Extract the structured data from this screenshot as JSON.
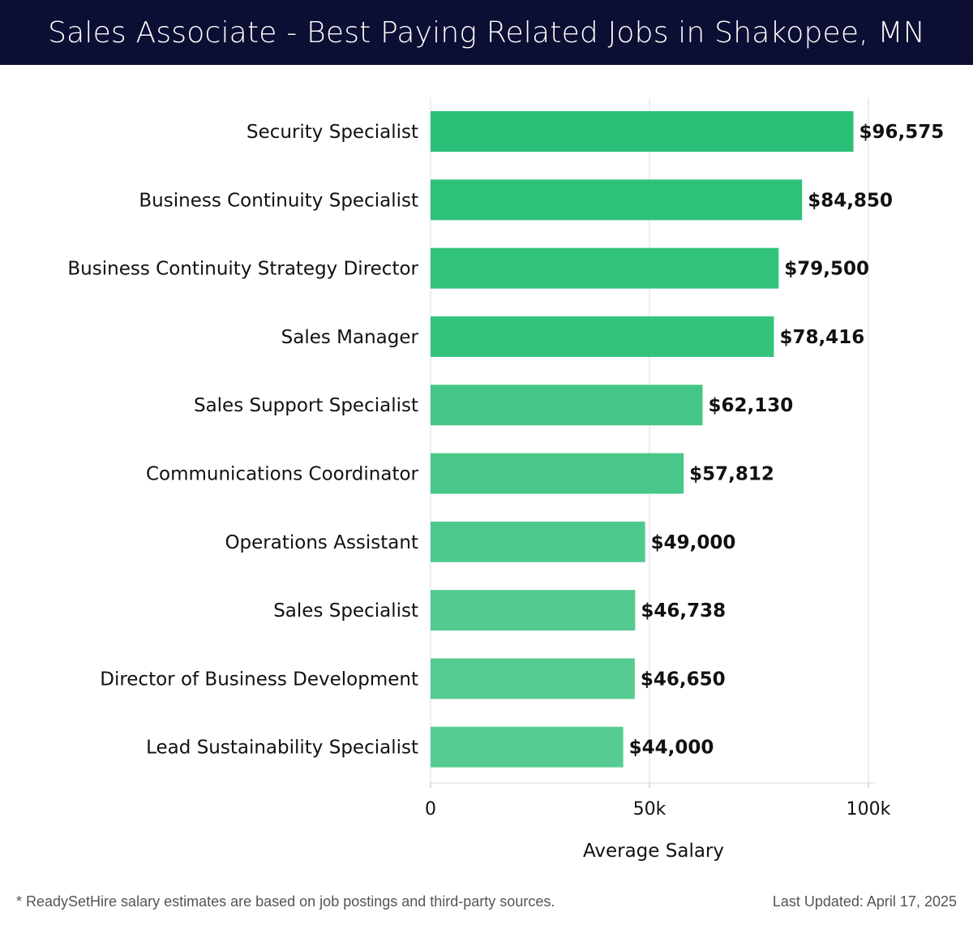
{
  "header": {
    "title": "Sales Associate - Best Paying Related Jobs in Shakopee, MN"
  },
  "chart_data": {
    "type": "bar",
    "orientation": "horizontal",
    "title": "Sales Associate - Best Paying Related Jobs in Shakopee, MN",
    "xlabel": "Average Salary",
    "ylabel": "",
    "categories": [
      "Security Specialist",
      "Business Continuity Specialist",
      "Business Continuity Strategy Director",
      "Sales Manager",
      "Sales Support Specialist",
      "Communications Coordinator",
      "Operations Assistant",
      "Sales Specialist",
      "Director of Business Development",
      "Lead Sustainability Specialist"
    ],
    "values": [
      96575,
      84850,
      79500,
      78416,
      62130,
      57812,
      49000,
      46738,
      46650,
      44000
    ],
    "value_labels": [
      "$96,575",
      "$84,850",
      "$79,500",
      "$78,416",
      "$62,130",
      "$57,812",
      "$49,000",
      "$46,738",
      "$46,650",
      "$44,000"
    ],
    "bar_colors": [
      "#2cbf78",
      "#2ec17a",
      "#31c27c",
      "#33c37d",
      "#45c686",
      "#48c788",
      "#4ec98c",
      "#55ca90",
      "#56cb91",
      "#57cc92"
    ],
    "xlim": [
      0,
      100000
    ],
    "xticks": [
      0,
      50000,
      100000
    ],
    "xtick_labels": [
      "0",
      "50k",
      "100k"
    ],
    "grid": true
  },
  "footer": {
    "note": "* ReadySetHire salary estimates are based on job postings and third-party sources.",
    "updated": "Last Updated: April 17, 2025"
  }
}
